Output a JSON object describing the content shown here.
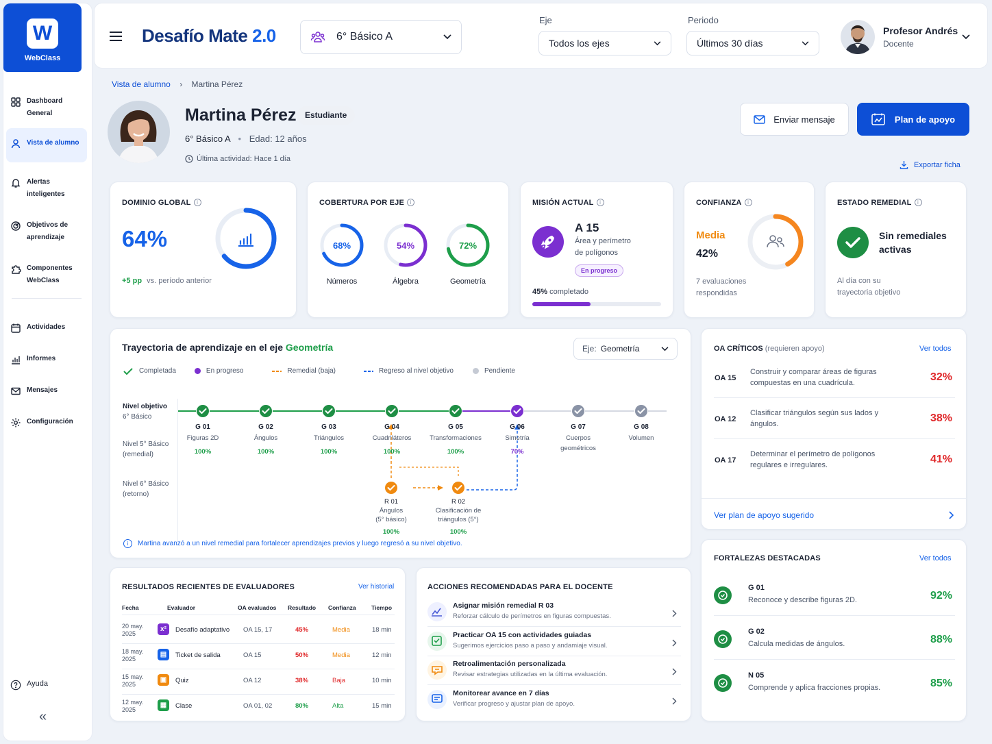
{
  "app": {
    "logo_letter": "W",
    "logo_name": "WebClass",
    "title": "Desafío Mate",
    "version": "2.0"
  },
  "sidebar": {
    "items": [
      {
        "label_1": "Dashboard",
        "label_2": "General"
      },
      {
        "label_1": "Vista de alumno",
        "label_2": ""
      },
      {
        "label_1": "Alertas",
        "label_2": "inteligentes"
      },
      {
        "label_1": "Objetivos de",
        "label_2": "aprendizaje"
      },
      {
        "label_1": "Componentes",
        "label_2": "WebClass"
      },
      {
        "label_1": "Actividades",
        "label_2": ""
      },
      {
        "label_1": "Informes",
        "label_2": ""
      },
      {
        "label_1": "Mensajes",
        "label_2": ""
      },
      {
        "label_1": "Configuración",
        "label_2": ""
      }
    ],
    "help": "Ayuda",
    "collapse": "«"
  },
  "header": {
    "class_select": "6° Básico A",
    "eje_label": "Eje",
    "eje_value": "Todos los ejes",
    "periodo_label": "Periodo",
    "periodo_value": "Últimos 30 días",
    "user_name": "Profesor Andrés",
    "user_role": "Docente"
  },
  "breadcrumb": {
    "root": "Vista de alumno",
    "sep": "›",
    "current": "Martina Pérez"
  },
  "student": {
    "name": "Martina Pérez",
    "badge": "Estudiante",
    "course": "6° Básico A",
    "dot": "•",
    "age": "Edad: 12 años",
    "last_activity": "Última actividad: Hace 1 día"
  },
  "actions": {
    "message": "Enviar mensaje",
    "plan": "Plan de apoyo",
    "export": "Exportar ficha"
  },
  "kpi": {
    "dominio": {
      "title": "DOMINIO GLOBAL",
      "value": "64%",
      "delta": "+5 pp",
      "delta_text": "vs. período anterior",
      "ring": 0.64
    },
    "cobertura": {
      "title": "COBERTURA POR EJE",
      "items": [
        {
          "value": "68%",
          "label": "Números",
          "ring": 0.68,
          "color": "#1763e8"
        },
        {
          "value": "54%",
          "label": "Álgebra",
          "ring": 0.54,
          "color": "#7b2fd0"
        },
        {
          "value": "72%",
          "label": "Geometría",
          "ring": 0.72,
          "color": "#1e9e4a"
        }
      ]
    },
    "mision": {
      "title": "MISIÓN ACTUAL",
      "code": "A 15",
      "desc_1": "Área y perímetro",
      "desc_2": "de polígonos",
      "status": "En progreso",
      "progress_label": "45%",
      "progress_text": "completado",
      "progress": 0.45
    },
    "confianza": {
      "title": "CONFIANZA",
      "level": "Media",
      "value": "42%",
      "note_1": "7 evaluaciones",
      "note_2": "respondidas",
      "ring": 0.42
    },
    "remedial": {
      "title": "ESTADO REMEDIAL",
      "status_1": "Sin remediales",
      "status_2": "activas",
      "note_1": "Al día con su",
      "note_2": "trayectoria objetivo"
    }
  },
  "trajectory": {
    "title": "Trayectoria de aprendizaje en el eje",
    "title_highlight": "Geometría",
    "select_label": "Eje:",
    "select_value": "Geometría",
    "legend": [
      "Completada",
      "En progreso",
      "Remedial (baja)",
      "Regreso al nivel objetivo",
      "Pendiente"
    ],
    "levels": [
      {
        "l1": "Nivel objetivo",
        "l2": "6° Básico"
      },
      {
        "l1": "Nivel 5° Básico",
        "l2": "(remedial)"
      },
      {
        "l1": "Nivel 6° Básico",
        "l2": "(retorno)"
      }
    ],
    "nodes": [
      {
        "code": "G 01",
        "name": "Figuras 2D",
        "name2": "",
        "pct": "100%",
        "state": "done"
      },
      {
        "code": "G 02",
        "name": "Ángulos",
        "name2": "",
        "pct": "100%",
        "state": "done"
      },
      {
        "code": "G 03",
        "name": "Triángulos",
        "name2": "",
        "pct": "100%",
        "state": "done"
      },
      {
        "code": "G 04",
        "name": "Cuadriláteros",
        "name2": "",
        "pct": "100%",
        "state": "done"
      },
      {
        "code": "G 05",
        "name": "Transformaciones",
        "name2": "",
        "pct": "100%",
        "state": "done"
      },
      {
        "code": "G 06",
        "name": "Simetría",
        "name2": "",
        "pct": "70%",
        "state": "progress"
      },
      {
        "code": "G 07",
        "name": "Cuerpos",
        "name2": "geométricos",
        "pct": "",
        "state": "pending"
      },
      {
        "code": "G 08",
        "name": "Volumen",
        "name2": "",
        "pct": "",
        "state": "pending"
      }
    ],
    "remedials": [
      {
        "code": "R 01",
        "name": "Ángulos",
        "name2": "(5° básico)",
        "pct": "100%"
      },
      {
        "code": "R 02",
        "name": "Clasificación de",
        "name2": "triángulos (5°)",
        "pct": "100%"
      }
    ],
    "note": "Martina avanzó a un nivel remedial para fortalecer aprendizajes previos y luego regresó a su nivel objetivo."
  },
  "critical": {
    "title": "OA CRÍTICOS",
    "subtitle": "(requieren apoyo)",
    "link": "Ver todos",
    "items": [
      {
        "code": "OA 15",
        "d1": "Construir y comparar áreas de figuras",
        "d2": "compuestas en una cuadrícula.",
        "pct": "32%"
      },
      {
        "code": "OA 12",
        "d1": "Clasificar triángulos según sus lados y",
        "d2": "ángulos.",
        "pct": "38%"
      },
      {
        "code": "OA 17",
        "d1": "Determinar el perímetro de polígonos",
        "d2": "regulares e irregulares.",
        "pct": "41%"
      }
    ],
    "footer": "Ver plan de apoyo sugerido"
  },
  "results": {
    "title": "RESULTADOS RECIENTES DE EVALUADORES",
    "link": "Ver historial",
    "headers": [
      "Fecha",
      "Evaluador",
      "OA evaluados",
      "Resultado",
      "Confianza",
      "Tiempo"
    ],
    "rows": [
      {
        "d1": "20 may.",
        "d2": "2025",
        "icon": "x²",
        "color": "#7b2fd0",
        "evaluator": "Desafío adaptativo",
        "oa": "OA 15, 17",
        "result": "45%",
        "rcolor": "#e0292b",
        "conf": "Media",
        "ccolor": "#f08a10",
        "time": "18 min"
      },
      {
        "d1": "18 may.",
        "d2": "2025",
        "icon": "▤",
        "color": "#1763e8",
        "evaluator": "Ticket de salida",
        "oa": "OA 15",
        "result": "50%",
        "rcolor": "#e0292b",
        "conf": "Media",
        "ccolor": "#f08a10",
        "time": "12 min"
      },
      {
        "d1": "15 may.",
        "d2": "2025",
        "icon": "▣",
        "color": "#f08a10",
        "evaluator": "Quiz",
        "oa": "OA 12",
        "result": "38%",
        "rcolor": "#e0292b",
        "conf": "Baja",
        "ccolor": "#e0292b",
        "time": "10 min"
      },
      {
        "d1": "12 may.",
        "d2": "2025",
        "icon": "▦",
        "color": "#1e9e4a",
        "evaluator": "Clase",
        "oa": "OA 01, 02",
        "result": "80%",
        "rcolor": "#1e9e4a",
        "conf": "Alta",
        "ccolor": "#1e9e4a",
        "time": "15 min"
      }
    ]
  },
  "recommendations": {
    "title": "ACCIONES RECOMENDADAS PARA EL DOCENTE",
    "items": [
      {
        "t": "Asignar misión remedial R 03",
        "d": "Reforzar cálculo de perímetros en figuras compuestas.",
        "bg": "#eef0ff",
        "fg": "#4a5bd6"
      },
      {
        "t": "Practicar OA 15 con actividades guiadas",
        "d": "Sugerimos ejercicios paso a paso y andamiaje visual.",
        "bg": "#e7f6ec",
        "fg": "#1e9e4a"
      },
      {
        "t": "Retroalimentación personalizada",
        "d": "Revisar estrategias utilizadas en la última evaluación.",
        "bg": "#fff4e2",
        "fg": "#f08a10"
      },
      {
        "t": "Monitorear avance en 7 días",
        "d": "Verificar progreso y ajustar plan de apoyo.",
        "bg": "#eaf1ff",
        "fg": "#1763e8"
      }
    ]
  },
  "strengths": {
    "title": "FORTALEZAS DESTACADAS",
    "link": "Ver todos",
    "items": [
      {
        "code": "G 01",
        "d": "Reconoce y describe figuras 2D.",
        "pct": "92%"
      },
      {
        "code": "G 02",
        "d": "Calcula medidas de ángulos.",
        "pct": "88%"
      },
      {
        "code": "N 05",
        "d": "Comprende y aplica fracciones propias.",
        "pct": "85%"
      }
    ]
  },
  "colors": {
    "primary": "#0d4fd6",
    "green": "#1e9e4a",
    "purple": "#7b2fd0",
    "orange": "#f08a10",
    "red": "#e0292b",
    "gray": "#8a93a6"
  }
}
